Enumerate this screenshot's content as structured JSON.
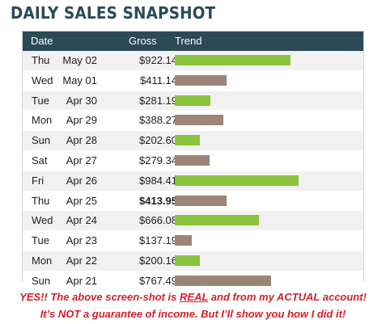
{
  "title": "DAILY SALES SNAPSHOT",
  "headers": {
    "date": "Date",
    "gross": "Gross",
    "trend": "Trend"
  },
  "colors": {
    "up": "#8bc43f",
    "down": "#9b8579",
    "header": "#2b4a55",
    "title": "#2a4a58",
    "footer": "#d4202a"
  },
  "rows": [
    {
      "day": "Thu",
      "date": "May 02",
      "gross": "$922.14",
      "trend": "up",
      "bold": false
    },
    {
      "day": "Wed",
      "date": "May 01",
      "gross": "$411.14",
      "trend": "down",
      "bold": false
    },
    {
      "day": "Tue",
      "date": "Apr 30",
      "gross": "$281.19",
      "trend": "up",
      "bold": false
    },
    {
      "day": "Mon",
      "date": "Apr 29",
      "gross": "$388.27",
      "trend": "down",
      "bold": false
    },
    {
      "day": "Sun",
      "date": "Apr 28",
      "gross": "$202.60",
      "trend": "up",
      "bold": false
    },
    {
      "day": "Sat",
      "date": "Apr 27",
      "gross": "$279.34",
      "trend": "down",
      "bold": false
    },
    {
      "day": "Fri",
      "date": "Apr 26",
      "gross": "$984.41",
      "trend": "up",
      "bold": false
    },
    {
      "day": "Thu",
      "date": "Apr 25",
      "gross": "$413.95",
      "trend": "down",
      "bold": true
    },
    {
      "day": "Wed",
      "date": "Apr 24",
      "gross": "$666.08",
      "trend": "up",
      "bold": false
    },
    {
      "day": "Tue",
      "date": "Apr 23",
      "gross": "$137.19",
      "trend": "down",
      "bold": false
    },
    {
      "day": "Mon",
      "date": "Apr 22",
      "gross": "$200.16",
      "trend": "up",
      "bold": false
    },
    {
      "day": "Sun",
      "date": "Apr 21",
      "gross": "$767.49",
      "trend": "down",
      "bold": false
    }
  ],
  "footer": {
    "line1_a": "YES!! The above screen-shot is ",
    "line1_b": "REAL",
    "line1_c": " and from my ACTUAL account!",
    "line2": "It’s NOT a guarantee of income. But I’ll show you how I did it!"
  }
}
